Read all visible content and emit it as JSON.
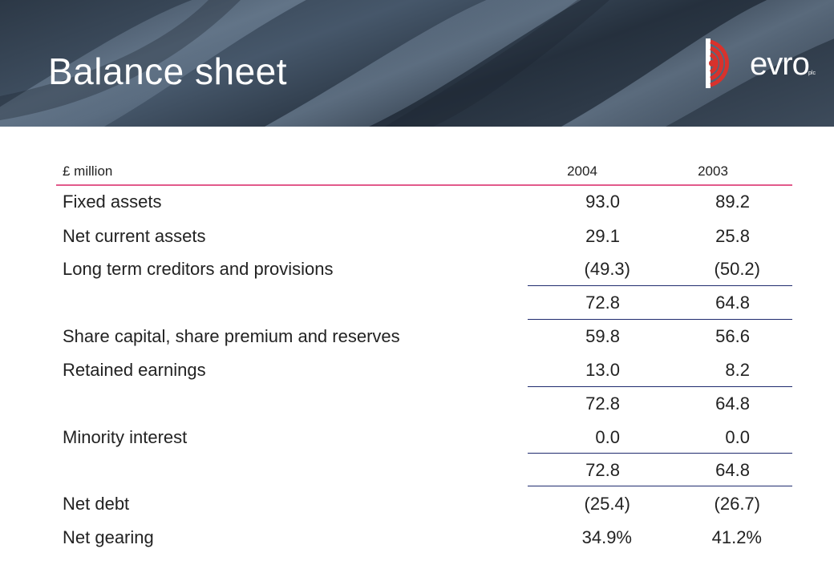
{
  "header": {
    "title": "Balance sheet",
    "logo_text": "evro",
    "logo_suffix": "plc"
  },
  "table": {
    "unit_label": "£ million",
    "columns": [
      "2004",
      "2003"
    ],
    "rows": [
      {
        "label": "Fixed assets",
        "v2004": "93.0",
        "v2003": "89.2"
      },
      {
        "label": "Net current assets",
        "v2004": "29.1",
        "v2003": "25.8"
      },
      {
        "label": "Long term creditors and provisions",
        "v2004": "(49.3)",
        "v2003": "(50.2)"
      },
      {
        "label": "",
        "v2004": "72.8",
        "v2003": "64.8"
      },
      {
        "label": "Share capital, share premium and reserves",
        "v2004": "59.8",
        "v2003": "56.6"
      },
      {
        "label": "Retained earnings",
        "v2004": "13.0",
        "v2003": "8.2"
      },
      {
        "label": "",
        "v2004": "72.8",
        "v2003": "64.8"
      },
      {
        "label": "Minority interest",
        "v2004": "0.0",
        "v2003": "0.0"
      },
      {
        "label": "",
        "v2004": "72.8",
        "v2003": "64.8"
      },
      {
        "label": "Net debt",
        "v2004": "(25.4)",
        "v2003": "(26.7)"
      },
      {
        "label": "Net gearing",
        "v2004": "34.9%",
        "v2003": "41.2%"
      }
    ]
  },
  "colors": {
    "header_rule": "#e25a8b",
    "subtotal_rule": "#1f2b6e",
    "logo_accent": "#d8322c"
  }
}
